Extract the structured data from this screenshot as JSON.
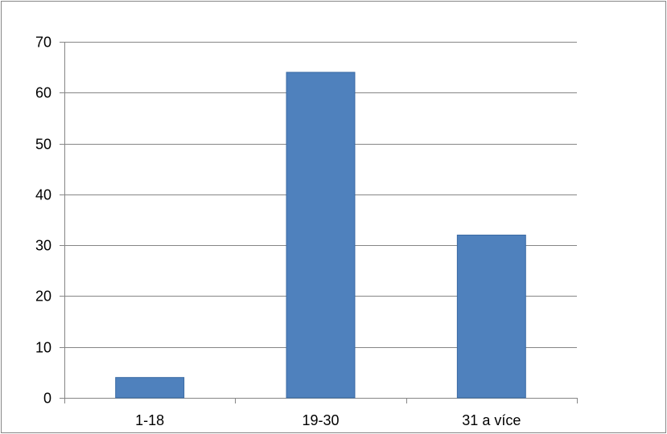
{
  "chart_data": {
    "type": "bar",
    "categories": [
      "1-18",
      "19-30",
      "31 a více"
    ],
    "values": [
      4,
      64,
      32
    ],
    "ylim": [
      0,
      70
    ],
    "yticks": [
      0,
      10,
      20,
      30,
      40,
      50,
      60,
      70
    ],
    "grid": true,
    "legend": "none",
    "colors": {
      "bar": "#4f81bd",
      "bar_edge": "#3a6aa3",
      "grid": "#868686",
      "axis": "#868686",
      "frame": "#868686"
    }
  }
}
